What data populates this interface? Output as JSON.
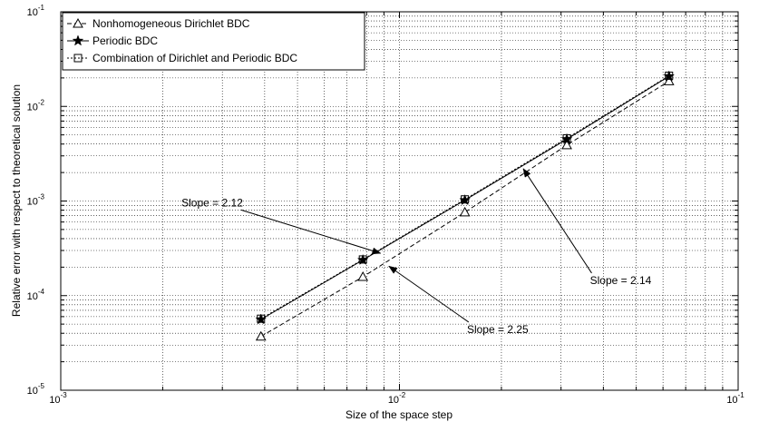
{
  "chart_data": {
    "type": "line",
    "title": "",
    "xlabel": "Size of the space step",
    "ylabel": "Relative error with respect to theoretical solution",
    "xscale": "log",
    "yscale": "log",
    "xlim": [
      0.001,
      0.1
    ],
    "ylim": [
      1e-05,
      0.1
    ],
    "grid": true,
    "legend_position": "top-left",
    "x_major_ticks": [
      0.001,
      0.01,
      0.1
    ],
    "x_tick_labels": [
      {
        "base": "10",
        "exp": "-3"
      },
      {
        "base": "10",
        "exp": "-2"
      },
      {
        "base": "10",
        "exp": "-1"
      }
    ],
    "y_major_ticks": [
      1e-05,
      0.0001,
      0.001,
      0.01,
      0.1
    ],
    "y_tick_labels": [
      {
        "base": "10",
        "exp": "-5"
      },
      {
        "base": "10",
        "exp": "-4"
      },
      {
        "base": "10",
        "exp": "-3"
      },
      {
        "base": "10",
        "exp": "-2"
      },
      {
        "base": "10",
        "exp": "-1"
      }
    ],
    "series": [
      {
        "name": "Nonhomogeneous Dirichlet BDC",
        "marker": "triangle",
        "dash": "5,3",
        "color": "#000000",
        "x": [
          0.0039,
          0.0078,
          0.0156,
          0.0312,
          0.0625
        ],
        "y": [
          3.7e-05,
          0.000158,
          0.00076,
          0.0039,
          0.0185
        ]
      },
      {
        "name": "Periodic BDC",
        "marker": "star",
        "dash": "",
        "color": "#000000",
        "x": [
          0.0039,
          0.0078,
          0.0156,
          0.0312,
          0.0625
        ],
        "y": [
          5.6e-05,
          0.000238,
          0.00102,
          0.0045,
          0.0208
        ]
      },
      {
        "name": "Combination of Dirichlet and Periodic BDC",
        "marker": "square",
        "dash": "2,2",
        "color": "#000000",
        "x": [
          0.0039,
          0.0078,
          0.0156,
          0.0312,
          0.0625
        ],
        "y": [
          5.7e-05,
          0.000241,
          0.00104,
          0.0046,
          0.0211
        ]
      }
    ],
    "annotations": [
      {
        "text": "Slope = 2.12",
        "tx": 0.0028,
        "ty": 0.00096,
        "ax": 0.0088,
        "ay": 0.00028
      },
      {
        "text": "Slope = 2.14",
        "tx": 0.045,
        "ty": 0.000145,
        "ax": 0.0232,
        "ay": 0.0022
      },
      {
        "text": "Slope = 2.25",
        "tx": 0.0195,
        "ty": 4.4e-05,
        "ax": 0.0093,
        "ay": 0.000205
      }
    ]
  }
}
